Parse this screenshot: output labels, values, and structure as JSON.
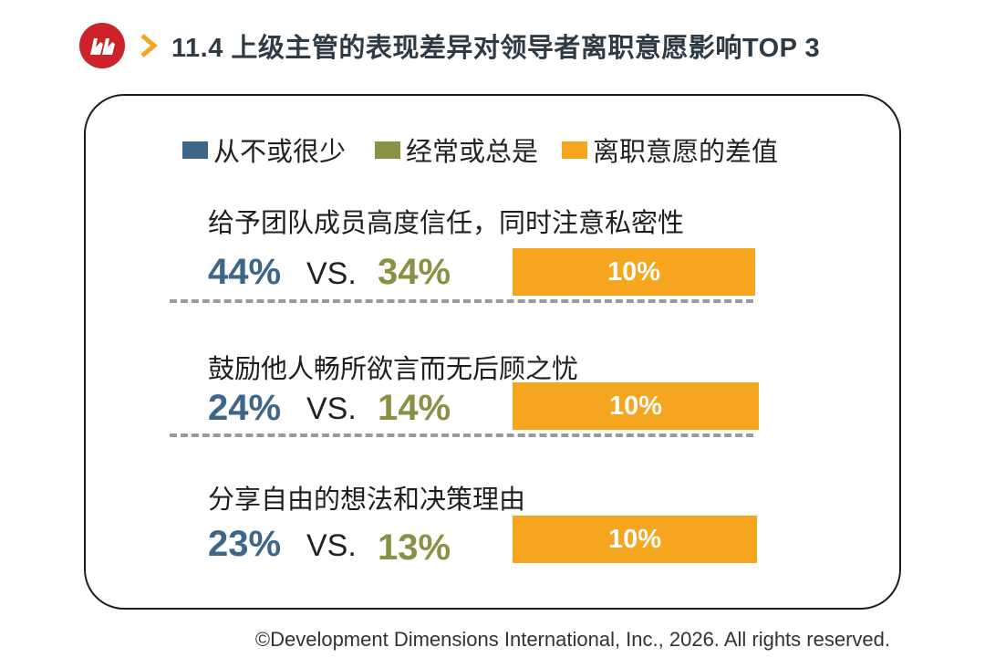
{
  "header": {
    "title": "11.4 上级主管的表现差异对领导者离职意愿影响TOP 3"
  },
  "colors": {
    "rarely": "#3d6689",
    "often": "#8a9145",
    "difference": "#f6a51f",
    "logo": "#cc2229",
    "chevron": "#f6a51f"
  },
  "chart_data": {
    "type": "table",
    "legend": [
      "从不或很少",
      "经常或总是",
      "离职意愿的差值"
    ],
    "rows": [
      {
        "label": "给予团队成员高度信任，同时注意私密性",
        "rarely": "44%",
        "vs": "VS.",
        "often": "34%",
        "difference": "10%"
      },
      {
        "label": "鼓励他人畅所欲言而无后顾之忧",
        "rarely": "24%",
        "vs": "VS.",
        "often": "14%",
        "difference": "10%"
      },
      {
        "label": "分享自由的想法和决策理由",
        "rarely": "23%",
        "vs": "VS.",
        "often": "13%",
        "difference": "10%"
      }
    ]
  },
  "footer": {
    "copyright": "©Development Dimensions International, Inc., 2026. All rights reserved."
  }
}
